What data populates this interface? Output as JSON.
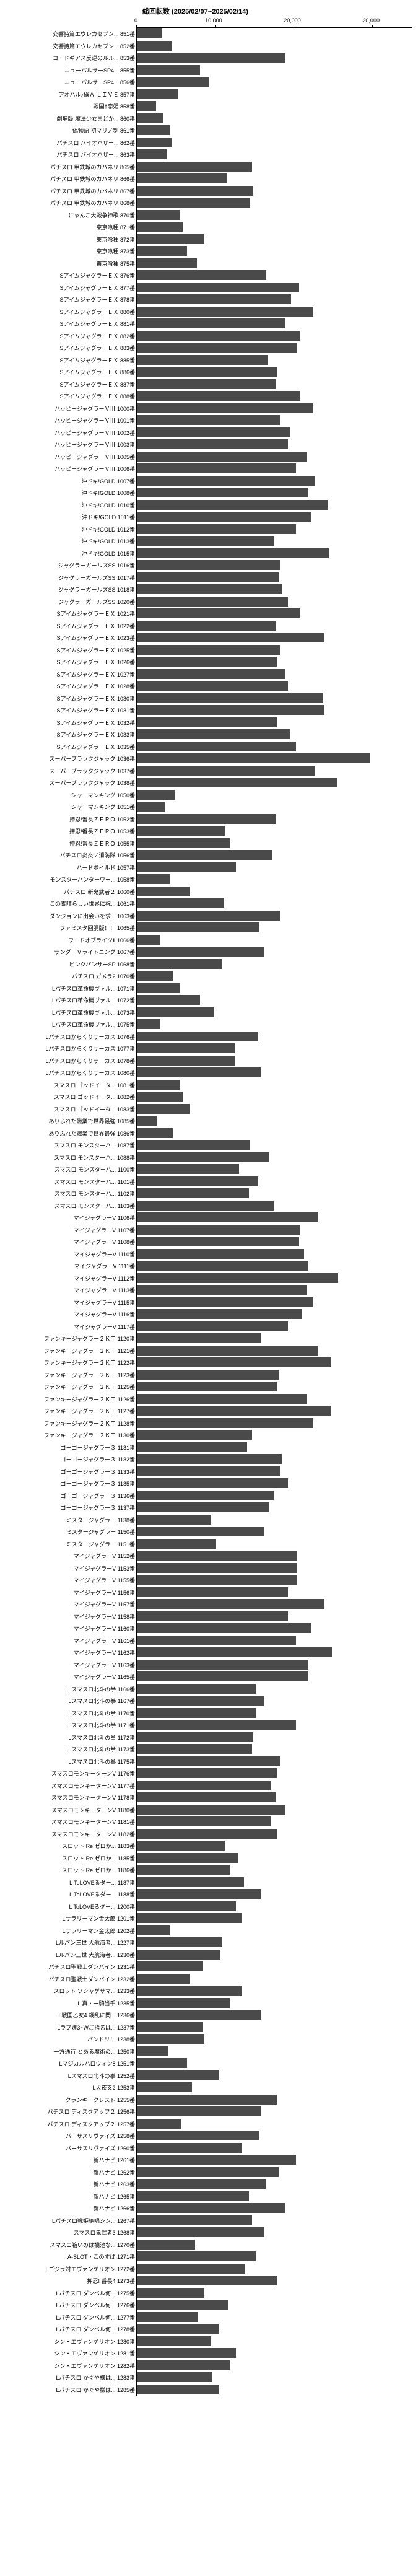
{
  "chart": {
    "title": "総回転数 (2025/02/07~2025/02/14)",
    "type": "bar",
    "orientation": "horizontal",
    "xmax": 35000,
    "xticks": [
      0,
      10000,
      20000,
      30000
    ],
    "xticklabels": [
      "0",
      "10,000",
      "20,000",
      "30,000"
    ],
    "bar_color": "#4a4a4a",
    "background_color": "#ffffff",
    "label_fontsize": 9,
    "title_fontsize": 11,
    "rows": [
      {
        "label": "交響詩篇エウレカセブン... 851番",
        "value": 3200
      },
      {
        "label": "交響詩篇エウレカセブン... 852番",
        "value": 4400
      },
      {
        "label": "コードギアス反逆のルル... 853番",
        "value": 18800
      },
      {
        "label": "ニューパルサーSP4... 855番",
        "value": 8000
      },
      {
        "label": "ニューパルサーSP4... 856番",
        "value": 9200
      },
      {
        "label": "アオハル♪操Ａ ＬＩＶＥ 857番",
        "value": 5200
      },
      {
        "label": "戦国†恋姫 858番",
        "value": 2400
      },
      {
        "label": "劇場版 魔法少女まどか... 860番",
        "value": 3400
      },
      {
        "label": "偽物語 初マリノ刻 861番",
        "value": 4200
      },
      {
        "label": "パチスロ バイオハザー... 862番",
        "value": 4400
      },
      {
        "label": "パチスロ バイオハザー... 863番",
        "value": 3800
      },
      {
        "label": "パチスロ 甲鉄城のカバネリ 865番",
        "value": 14600
      },
      {
        "label": "パチスロ 甲鉄城のカバネリ 866番",
        "value": 11400
      },
      {
        "label": "パチスロ 甲鉄城のカバネリ 867番",
        "value": 14800
      },
      {
        "label": "パチスロ 甲鉄城のカバネリ 868番",
        "value": 14400
      },
      {
        "label": "にゃんこ大戦争神歌 870番",
        "value": 5400
      },
      {
        "label": "東京喰種 871番",
        "value": 5800
      },
      {
        "label": "東京喰種 872番",
        "value": 8600
      },
      {
        "label": "東京喰種 873番",
        "value": 6400
      },
      {
        "label": "東京喰種 875番",
        "value": 7600
      },
      {
        "label": "SアイムジャグラーＥＸ 876番",
        "value": 16400
      },
      {
        "label": "SアイムジャグラーＥＸ 877番",
        "value": 20600
      },
      {
        "label": "SアイムジャグラーＥＸ 878番",
        "value": 19600
      },
      {
        "label": "SアイムジャグラーＥＸ 880番",
        "value": 22400
      },
      {
        "label": "SアイムジャグラーＥＸ 881番",
        "value": 18800
      },
      {
        "label": "SアイムジャグラーＥＸ 882番",
        "value": 20800
      },
      {
        "label": "SアイムジャグラーＥＸ 883番",
        "value": 20400
      },
      {
        "label": "SアイムジャグラーＥＸ 885番",
        "value": 16600
      },
      {
        "label": "SアイムジャグラーＥＸ 886番",
        "value": 17800
      },
      {
        "label": "SアイムジャグラーＥＸ 887番",
        "value": 17600
      },
      {
        "label": "SアイムジャグラーＥＸ 888番",
        "value": 20800
      },
      {
        "label": "ハッピージャグラーＶⅢ 1000番",
        "value": 22400
      },
      {
        "label": "ハッピージャグラーＶⅢ 1001番",
        "value": 18200
      },
      {
        "label": "ハッピージャグラーＶⅢ 1002番",
        "value": 19400
      },
      {
        "label": "ハッピージャグラーＶⅢ 1003番",
        "value": 19200
      },
      {
        "label": "ハッピージャグラーＶⅢ 1005番",
        "value": 21600
      },
      {
        "label": "ハッピージャグラーＶⅢ 1006番",
        "value": 20200
      },
      {
        "label": "沖ドキ!GOLD 1007番",
        "value": 22600
      },
      {
        "label": "沖ドキ!GOLD 1008番",
        "value": 21800
      },
      {
        "label": "沖ドキ!GOLD 1010番",
        "value": 24200
      },
      {
        "label": "沖ドキ!GOLD 1011番",
        "value": 22200
      },
      {
        "label": "沖ドキ!GOLD 1012番",
        "value": 20200
      },
      {
        "label": "沖ドキ!GOLD 1013番",
        "value": 17400
      },
      {
        "label": "沖ドキ!GOLD 1015番",
        "value": 24400
      },
      {
        "label": "ジャグラーガールズSS 1016番",
        "value": 18200
      },
      {
        "label": "ジャグラーガールズSS 1017番",
        "value": 18000
      },
      {
        "label": "ジャグラーガールズSS 1018番",
        "value": 18400
      },
      {
        "label": "ジャグラーガールズSS 1020番",
        "value": 19200
      },
      {
        "label": "SアイムジャグラーＥＸ 1021番",
        "value": 20800
      },
      {
        "label": "SアイムジャグラーＥＸ 1022番",
        "value": 17600
      },
      {
        "label": "SアイムジャグラーＥＸ 1023番",
        "value": 23800
      },
      {
        "label": "SアイムジャグラーＥＸ 1025番",
        "value": 18200
      },
      {
        "label": "SアイムジャグラーＥＸ 1026番",
        "value": 17800
      },
      {
        "label": "SアイムジャグラーＥＸ 1027番",
        "value": 18800
      },
      {
        "label": "SアイムジャグラーＥＸ 1028番",
        "value": 19200
      },
      {
        "label": "SアイムジャグラーＥＸ 1030番",
        "value": 23600
      },
      {
        "label": "SアイムジャグラーＥＸ 1031番",
        "value": 23800
      },
      {
        "label": "SアイムジャグラーＥＸ 1032番",
        "value": 17800
      },
      {
        "label": "SアイムジャグラーＥＸ 1033番",
        "value": 19400
      },
      {
        "label": "SアイムジャグラーＥＸ 1035番",
        "value": 20200
      },
      {
        "label": "スーパーブラックジャック 1036番",
        "value": 29600
      },
      {
        "label": "スーパーブラックジャック 1037番",
        "value": 22600
      },
      {
        "label": "スーパーブラックジャック 1038番",
        "value": 25400
      },
      {
        "label": "シャーマンキング 1050番",
        "value": 4800
      },
      {
        "label": "シャーマンキング 1051番",
        "value": 3600
      },
      {
        "label": "押忍!番長ＺＥＲＯ 1052番",
        "value": 17600
      },
      {
        "label": "押忍!番長ＺＥＲＯ 1053番",
        "value": 11200
      },
      {
        "label": "押忍!番長ＺＥＲＯ 1055番",
        "value": 11800
      },
      {
        "label": "パチスロ炎炎ノ消防隊 1056番",
        "value": 17200
      },
      {
        "label": "ハードボイルド 1057番",
        "value": 12600
      },
      {
        "label": "モンスターハンターワー... 1058番",
        "value": 4200
      },
      {
        "label": "パチスロ 新鬼武者２ 1060番",
        "value": 6800
      },
      {
        "label": "この素晴らしい世界に祝... 1061番",
        "value": 11000
      },
      {
        "label": "ダンジョンに出会いを求... 1063番",
        "value": 18200
      },
      {
        "label": "ファミスタ回胴版！！ 1065番",
        "value": 15600
      },
      {
        "label": "ワードオブライツⅡ 1066番",
        "value": 3000
      },
      {
        "label": "サンダーＶライトニング 1067番",
        "value": 16200
      },
      {
        "label": "ピンクパンサーSP 1068番",
        "value": 10800
      },
      {
        "label": "パチスロ ガメラ2 1070番",
        "value": 4600
      },
      {
        "label": "Lパチスロ革命機ヴァル... 1071番",
        "value": 5400
      },
      {
        "label": "Lパチスロ革命機ヴァル... 1072番",
        "value": 8000
      },
      {
        "label": "Lパチスロ革命機ヴァル... 1073番",
        "value": 9800
      },
      {
        "label": "Lパチスロ革命機ヴァル... 1075番",
        "value": 3000
      },
      {
        "label": "Lパチスロからくりサーカス 1076番",
        "value": 15400
      },
      {
        "label": "Lパチスロからくりサーカス 1077番",
        "value": 12400
      },
      {
        "label": "Lパチスロからくりサーカス 1078番",
        "value": 12400
      },
      {
        "label": "Lパチスロからくりサーカス 1080番",
        "value": 15800
      },
      {
        "label": "スマスロ ゴッドイータ... 1081番",
        "value": 5400
      },
      {
        "label": "スマスロ ゴッドイータ... 1082番",
        "value": 5800
      },
      {
        "label": "スマスロ ゴッドイータ... 1083番",
        "value": 6800
      },
      {
        "label": "ありふれた職業で世界最強 1085番",
        "value": 2600
      },
      {
        "label": "ありふれた職業で世界最強 1086番",
        "value": 4600
      },
      {
        "label": "スマスロ モンスターハ... 1087番",
        "value": 14400
      },
      {
        "label": "スマスロ モンスターハ... 1088番",
        "value": 16800
      },
      {
        "label": "スマスロ モンスターハ... 1100番",
        "value": 13000
      },
      {
        "label": "スマスロ モンスターハ... 1101番",
        "value": 15400
      },
      {
        "label": "スマスロ モンスターハ... 1102番",
        "value": 14200
      },
      {
        "label": "スマスロ モンスターハ... 1103番",
        "value": 17400
      },
      {
        "label": "マイジャグラーV 1106番",
        "value": 23000
      },
      {
        "label": "マイジャグラーV 1107番",
        "value": 20800
      },
      {
        "label": "マイジャグラーV 1108番",
        "value": 20600
      },
      {
        "label": "マイジャグラーV 1110番",
        "value": 21200
      },
      {
        "label": "マイジャグラーV 1111番",
        "value": 21800
      },
      {
        "label": "マイジャグラーV 1112番",
        "value": 25600
      },
      {
        "label": "マイジャグラーV 1113番",
        "value": 21600
      },
      {
        "label": "マイジャグラーV 1115番",
        "value": 22400
      },
      {
        "label": "マイジャグラーV 1116番",
        "value": 21000
      },
      {
        "label": "マイジャグラーV 1117番",
        "value": 19200
      },
      {
        "label": "ファンキージャグラー２ＫＴ 1120番",
        "value": 15800
      },
      {
        "label": "ファンキージャグラー２ＫＴ 1121番",
        "value": 23000
      },
      {
        "label": "ファンキージャグラー２ＫＴ 1122番",
        "value": 24600
      },
      {
        "label": "ファンキージャグラー２ＫＴ 1123番",
        "value": 18000
      },
      {
        "label": "ファンキージャグラー２ＫＴ 1125番",
        "value": 17800
      },
      {
        "label": "ファンキージャグラー２ＫＴ 1126番",
        "value": 21600
      },
      {
        "label": "ファンキージャグラー２ＫＴ 1127番",
        "value": 24600
      },
      {
        "label": "ファンキージャグラー２ＫＴ 1128番",
        "value": 22400
      },
      {
        "label": "ファンキージャグラー２ＫＴ 1130番",
        "value": 14600
      },
      {
        "label": "ゴーゴージャグラー３ 1131番",
        "value": 14000
      },
      {
        "label": "ゴーゴージャグラー３ 1132番",
        "value": 18400
      },
      {
        "label": "ゴーゴージャグラー３ 1133番",
        "value": 18200
      },
      {
        "label": "ゴーゴージャグラー３ 1135番",
        "value": 19200
      },
      {
        "label": "ゴーゴージャグラー３ 1136番",
        "value": 17400
      },
      {
        "label": "ゴーゴージャグラー３ 1137番",
        "value": 16800
      },
      {
        "label": "ミスタージャグラー 1138番",
        "value": 9400
      },
      {
        "label": "ミスタージャグラー 1150番",
        "value": 16200
      },
      {
        "label": "ミスタージャグラー 1151番",
        "value": 10000
      },
      {
        "label": "マイジャグラーV 1152番",
        "value": 20400
      },
      {
        "label": "マイジャグラーV 1153番",
        "value": 20400
      },
      {
        "label": "マイジャグラーV 1155番",
        "value": 20400
      },
      {
        "label": "マイジャグラーV 1156番",
        "value": 19200
      },
      {
        "label": "マイジャグラーV 1157番",
        "value": 23800
      },
      {
        "label": "マイジャグラーV 1158番",
        "value": 19200
      },
      {
        "label": "マイジャグラーV 1160番",
        "value": 22200
      },
      {
        "label": "マイジャグラーV 1161番",
        "value": 20200
      },
      {
        "label": "マイジャグラーV 1162番",
        "value": 24800
      },
      {
        "label": "マイジャグラーV 1163番",
        "value": 21800
      },
      {
        "label": "マイジャグラーV 1165番",
        "value": 21800
      },
      {
        "label": "Lスマスロ北斗の拳 1166番",
        "value": 15200
      },
      {
        "label": "Lスマスロ北斗の拳 1167番",
        "value": 16200
      },
      {
        "label": "Lスマスロ北斗の拳 1170番",
        "value": 15200
      },
      {
        "label": "Lスマスロ北斗の拳 1171番",
        "value": 20200
      },
      {
        "label": "Lスマスロ北斗の拳 1172番",
        "value": 14800
      },
      {
        "label": "Lスマスロ北斗の拳 1173番",
        "value": 14600
      },
      {
        "label": "Lスマスロ北斗の拳 1175番",
        "value": 18200
      },
      {
        "label": "スマスロモンキーターンV 1176番",
        "value": 17800
      },
      {
        "label": "スマスロモンキーターンV 1177番",
        "value": 17000
      },
      {
        "label": "スマスロモンキーターンV 1178番",
        "value": 17600
      },
      {
        "label": "スマスロモンキーターンV 1180番",
        "value": 18800
      },
      {
        "label": "スマスロモンキーターンV 1181番",
        "value": 17000
      },
      {
        "label": "スマスロモンキーターンV 1182番",
        "value": 17800
      },
      {
        "label": "スロット Re:ゼロか... 1183番",
        "value": 11200
      },
      {
        "label": "スロット Re:ゼロか... 1185番",
        "value": 12800
      },
      {
        "label": "スロット Re:ゼロか... 1186番",
        "value": 11800
      },
      {
        "label": "L ToLOVEるダー... 1187番",
        "value": 13600
      },
      {
        "label": "L ToLOVEるダー... 1188番",
        "value": 15800
      },
      {
        "label": "L ToLOVEるダー... 1200番",
        "value": 12600
      },
      {
        "label": "Lサラリーマン金太郎 1201番",
        "value": 13400
      },
      {
        "label": "Lサラリーマン金太郎 1202番",
        "value": 4200
      },
      {
        "label": "Lルパン三世 大航海者... 1227番",
        "value": 10800
      },
      {
        "label": "Lルパン三世 大航海者... 1230番",
        "value": 10600
      },
      {
        "label": "パチスロ聖戦士ダンバイン 1231番",
        "value": 8400
      },
      {
        "label": "パチスロ聖戦士ダンバイン 1232番",
        "value": 6800
      },
      {
        "label": "スロット ソシャゲサマ... 1233番",
        "value": 13400
      },
      {
        "label": "L 真・一騎当千 1235番",
        "value": 11800
      },
      {
        "label": "L戦国乙女4 戦乱に閃... 1236番",
        "value": 15800
      },
      {
        "label": "Lラブ嬢3~Wご指名は... 1237番",
        "value": 8400
      },
      {
        "label": "バンドリ！ 1238番",
        "value": 8600
      },
      {
        "label": "一方通行 とある魔術の... 1250番",
        "value": 4000
      },
      {
        "label": "Lマジカルハロウィン8 1251番",
        "value": 6400
      },
      {
        "label": "Lスマスロ北斗の拳 1252番",
        "value": 10400
      },
      {
        "label": "L犬夜叉2 1253番",
        "value": 7000
      },
      {
        "label": "クランキークレスト 1255番",
        "value": 17800
      },
      {
        "label": "パチスロ ディスクアップ２ 1256番",
        "value": 15800
      },
      {
        "label": "パチスロ ディスクアップ２ 1257番",
        "value": 5600
      },
      {
        "label": "バーサスリヴァイズ 1258番",
        "value": 15600
      },
      {
        "label": "バーサスリヴァイズ 1260番",
        "value": 13400
      },
      {
        "label": "新ハナビ 1261番",
        "value": 20200
      },
      {
        "label": "新ハナビ 1262番",
        "value": 18000
      },
      {
        "label": "新ハナビ 1263番",
        "value": 16400
      },
      {
        "label": "新ハナビ 1265番",
        "value": 14200
      },
      {
        "label": "新ハナビ 1266番",
        "value": 18800
      },
      {
        "label": "Lパチスロ戦姫絶唱シン... 1267番",
        "value": 14600
      },
      {
        "label": "スマスロ鬼武者3 1268番",
        "value": 16200
      },
      {
        "label": "スマスロ箱いのは橋池な... 1270番",
        "value": 7400
      },
      {
        "label": "A‐SLOT・このすば 1271番",
        "value": 15200
      },
      {
        "label": "Lゴジラ対エヴァンゲリオン 1272番",
        "value": 13800
      },
      {
        "label": "押忍! 番長4 1273番",
        "value": 17800
      },
      {
        "label": "Lパチスロ ダンベル何... 1275番",
        "value": 8600
      },
      {
        "label": "Lパチスロ ダンベル何... 1276番",
        "value": 11600
      },
      {
        "label": "Lパチスロ ダンベル何... 1277番",
        "value": 7800
      },
      {
        "label": "Lパチスロ ダンベル何... 1278番",
        "value": 10400
      },
      {
        "label": "シン・エヴァンゲリオン 1280番",
        "value": 9400
      },
      {
        "label": "シン・エヴァンゲリオン 1281番",
        "value": 12600
      },
      {
        "label": "シン・エヴァンゲリオン 1282番",
        "value": 11800
      },
      {
        "label": "Lパチスロ かぐや様は... 1283番",
        "value": 9600
      },
      {
        "label": "Lパチスロ かぐや様は... 1285番",
        "value": 10400
      }
    ]
  }
}
